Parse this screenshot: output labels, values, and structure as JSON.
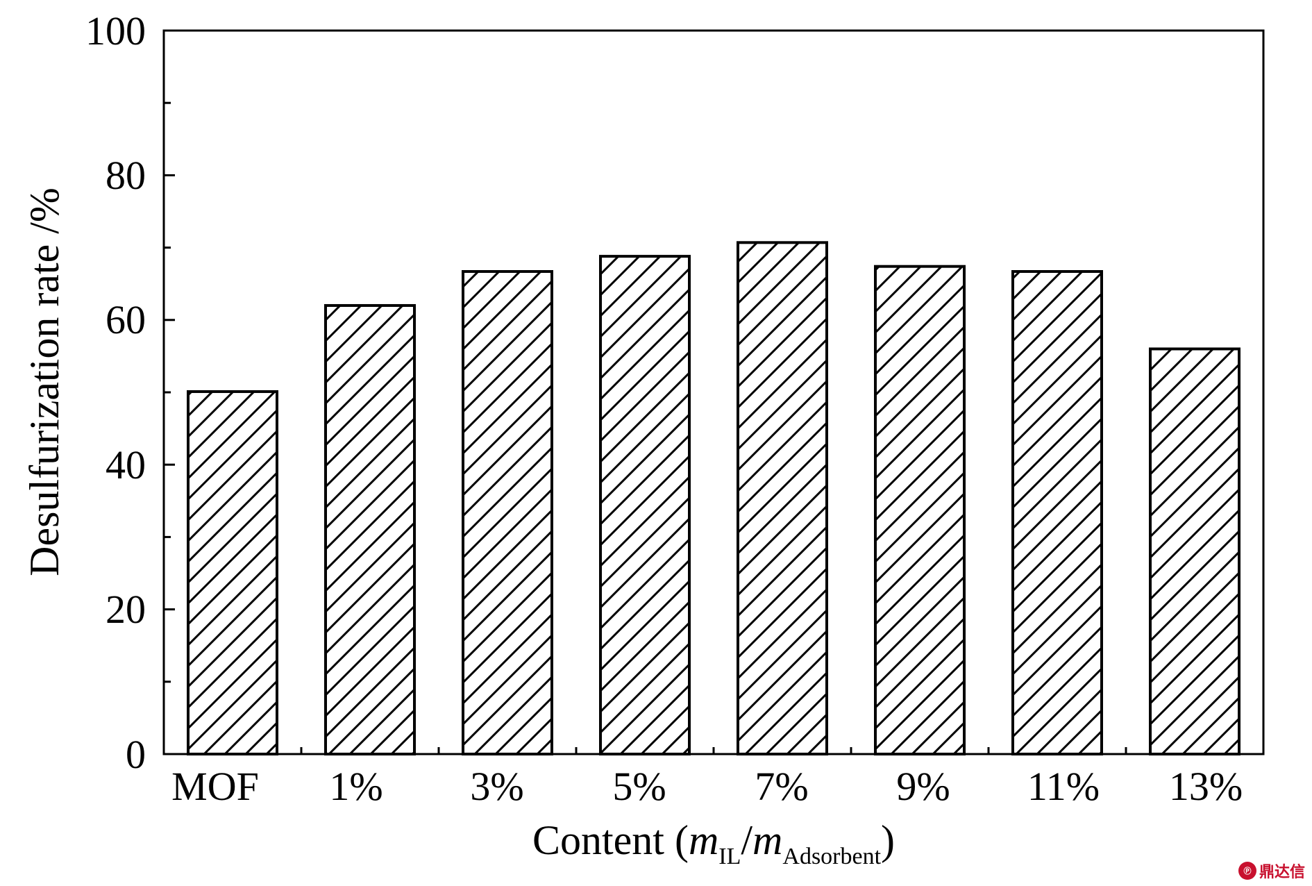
{
  "chart_data": {
    "type": "bar",
    "categories": [
      "MOF",
      "1%",
      "3%",
      "5%",
      "7%",
      "9%",
      "11%",
      "13%"
    ],
    "values": [
      50.1,
      62.0,
      66.7,
      68.8,
      70.7,
      67.4,
      66.7,
      56.0
    ],
    "ylabel": "Desulfurization rate /%",
    "xlabel": {
      "prefix": "Content (",
      "m1": "m",
      "sub1": "IL",
      "slash": "/",
      "m2": "m",
      "sub2": "Adsorbent",
      "suffix": ")"
    },
    "ylim": [
      0,
      100
    ],
    "yticks": [
      "0",
      "20",
      "40",
      "60",
      "80",
      "100"
    ],
    "grid": false,
    "bar_fill": "hatched",
    "bar_color": "#ffffff",
    "line_color": "#000000"
  },
  "watermark": {
    "text": "鼎达信",
    "icon": "seal-icon"
  }
}
